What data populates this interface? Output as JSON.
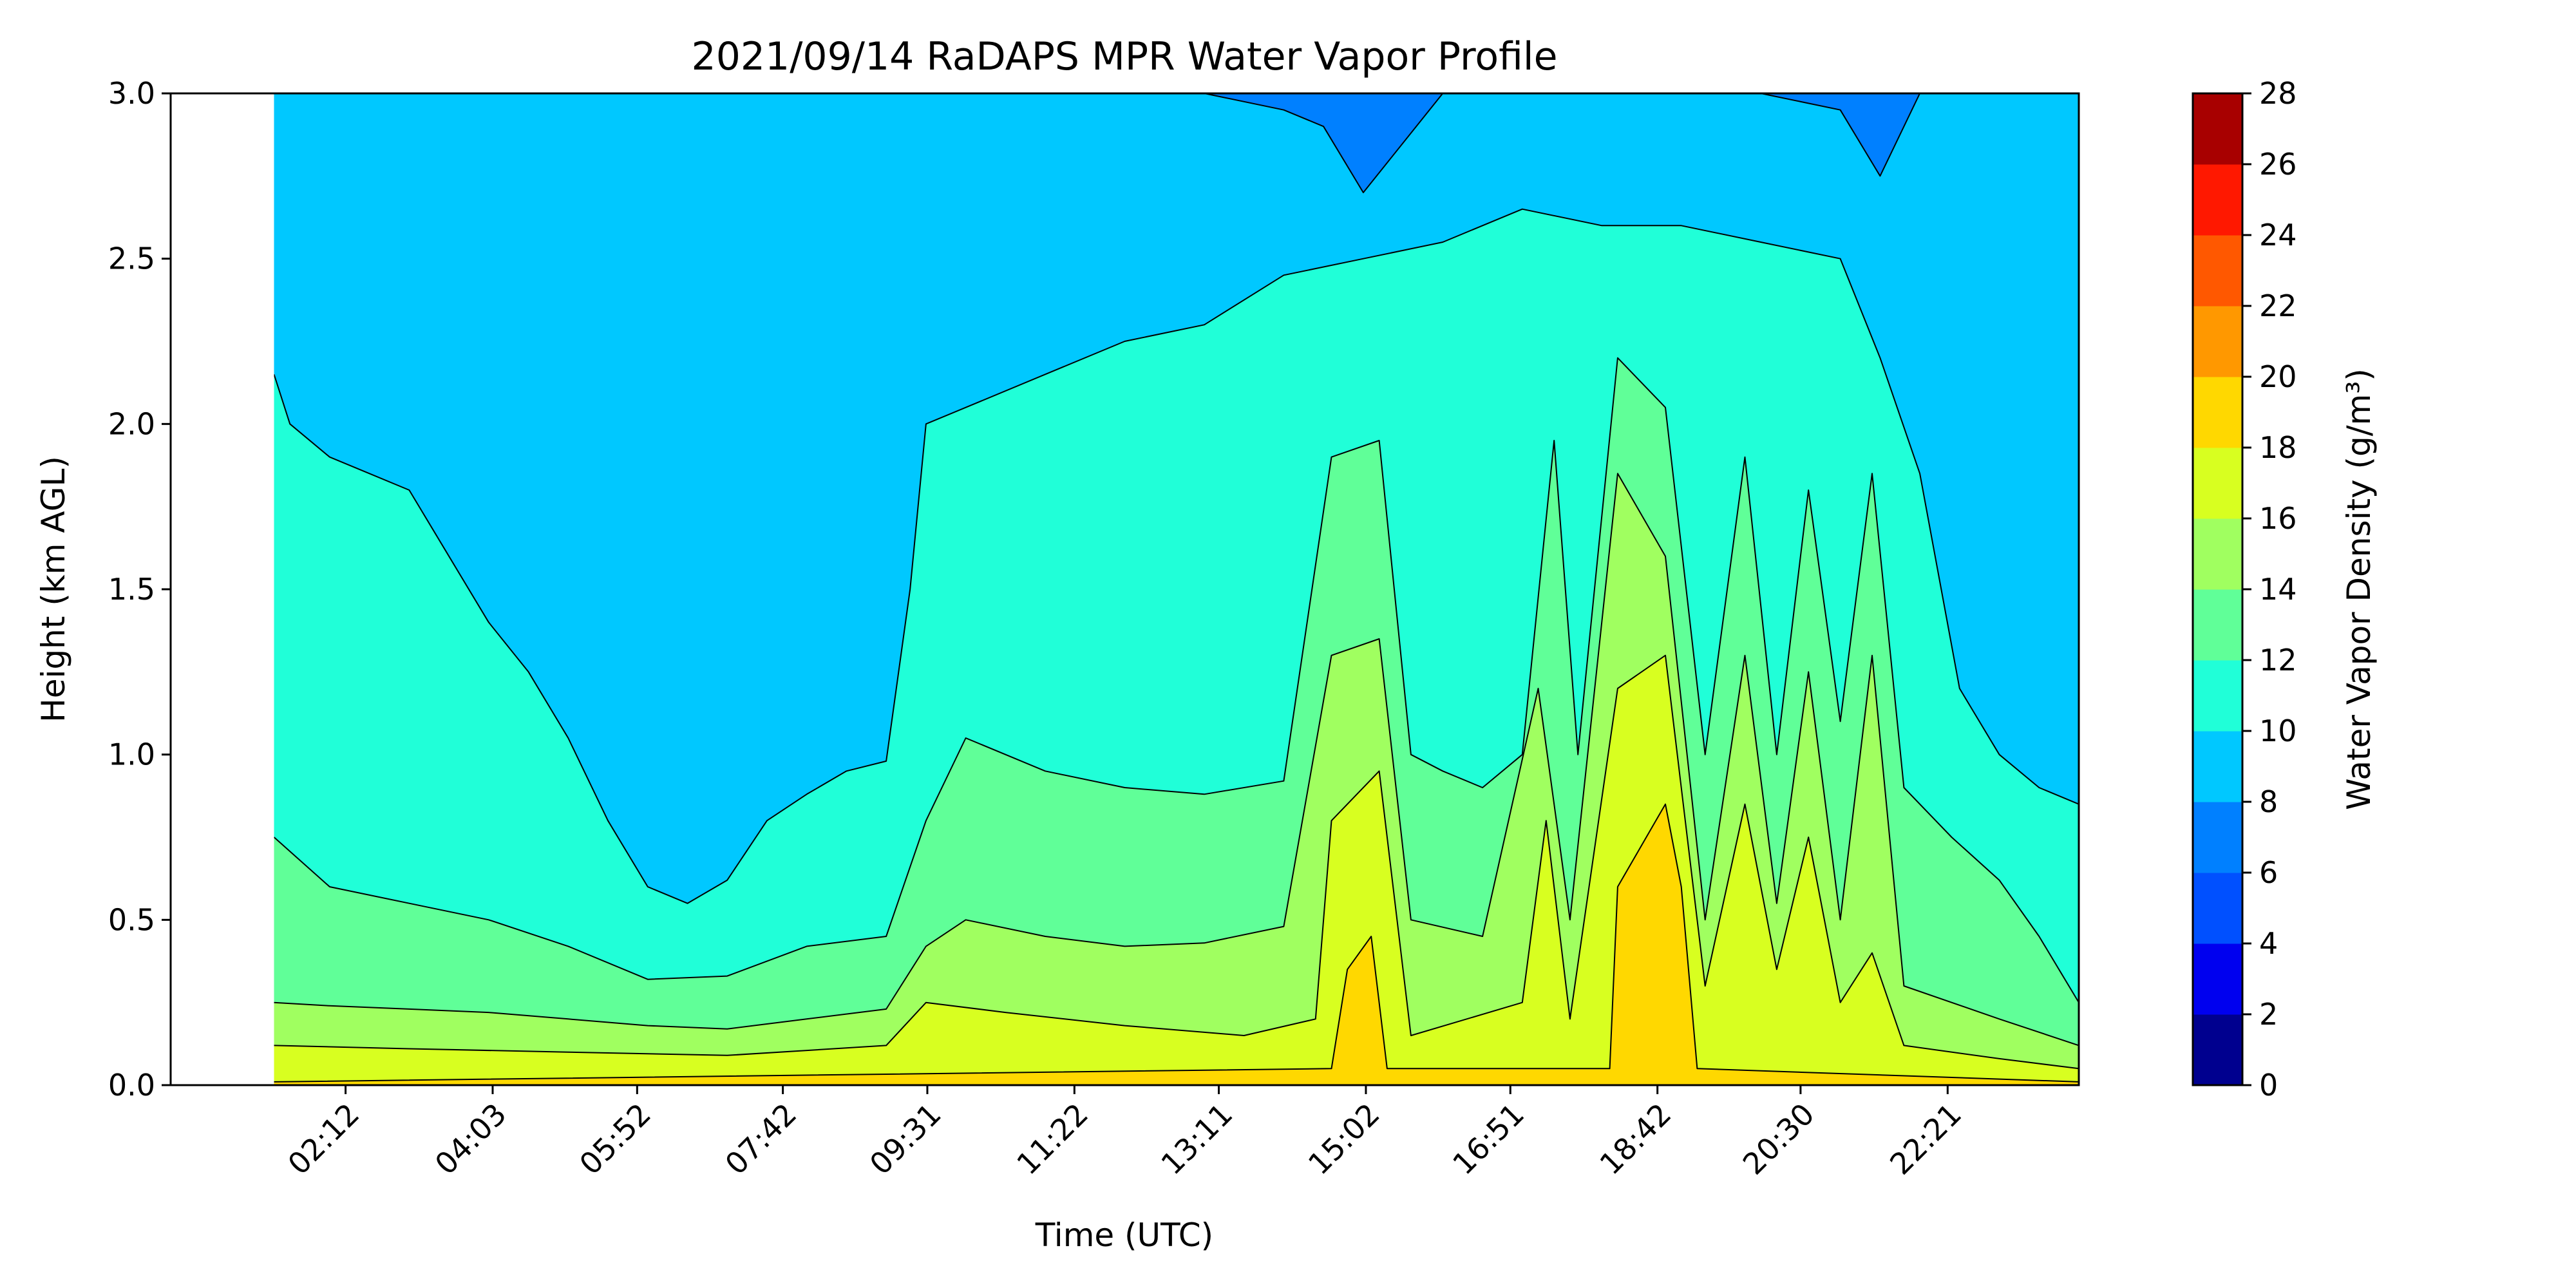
{
  "chart_data": {
    "type": "heatmap",
    "subtype": "filled-contour",
    "title": "2021/09/14 RaDAPS MPR Water Vapor Profile",
    "xlabel": "Time (UTC)",
    "ylabel": "Height (km AGL)",
    "x_range_hours": [
      0.0,
      24.0
    ],
    "x_ticks": [
      {
        "label": "02:12",
        "hour": 2.2
      },
      {
        "label": "04:03",
        "hour": 4.05
      },
      {
        "label": "05:52",
        "hour": 5.867
      },
      {
        "label": "07:42",
        "hour": 7.7
      },
      {
        "label": "09:31",
        "hour": 9.517
      },
      {
        "label": "11:22",
        "hour": 11.367
      },
      {
        "label": "13:11",
        "hour": 13.183
      },
      {
        "label": "15:02",
        "hour": 15.033
      },
      {
        "label": "16:51",
        "hour": 16.85
      },
      {
        "label": "18:42",
        "hour": 18.7
      },
      {
        "label": "20:30",
        "hour": 20.5
      },
      {
        "label": "22:21",
        "hour": 22.35
      }
    ],
    "ylim": [
      0.0,
      3.0
    ],
    "y_ticks": [
      "0.0",
      "0.5",
      "1.0",
      "1.5",
      "2.0",
      "2.5",
      "3.0"
    ],
    "data_gap_hours": [
      0.0,
      1.3
    ],
    "colorbar": {
      "label": "Water Vapor Density (g/m³)",
      "levels": [
        0,
        2,
        4,
        6,
        8,
        10,
        12,
        14,
        16,
        18,
        20,
        22,
        24,
        26,
        28
      ],
      "tick_labels": [
        "0",
        "2",
        "4",
        "6",
        "8",
        "10",
        "12",
        "14",
        "16",
        "18",
        "20",
        "22",
        "24",
        "26",
        "28"
      ],
      "colors": [
        "#00008f",
        "#0000ef",
        "#0050ff",
        "#0080ff",
        "#00c8ff",
        "#20ffd8",
        "#60ff98",
        "#a0ff60",
        "#d8ff20",
        "#ffd800",
        "#ff9800",
        "#ff5800",
        "#ff1800",
        "#a80000"
      ]
    },
    "boundaries": [
      {
        "level": 8,
        "tops": [
          [
            1.3,
            3.0
          ],
          [
            3.0,
            3.0
          ],
          [
            4.5,
            3.0
          ],
          [
            6.0,
            3.0
          ],
          [
            7.5,
            3.0
          ],
          [
            9.0,
            3.0
          ],
          [
            11.0,
            3.0
          ],
          [
            13.0,
            3.0
          ],
          [
            14.0,
            2.95
          ],
          [
            14.5,
            2.9
          ],
          [
            15.0,
            2.7
          ],
          [
            15.5,
            2.85
          ],
          [
            16.0,
            3.0
          ],
          [
            17.0,
            3.0
          ],
          [
            18.0,
            3.0
          ],
          [
            19.0,
            3.0
          ],
          [
            20.0,
            3.0
          ],
          [
            21.0,
            2.95
          ],
          [
            21.5,
            2.75
          ],
          [
            22.0,
            3.0
          ],
          [
            24.0,
            3.0
          ]
        ]
      },
      {
        "level": 10,
        "tops": [
          [
            1.3,
            2.15
          ],
          [
            1.5,
            2.0
          ],
          [
            2.0,
            1.9
          ],
          [
            2.5,
            1.85
          ],
          [
            3.0,
            1.8
          ],
          [
            3.5,
            1.6
          ],
          [
            4.0,
            1.4
          ],
          [
            4.5,
            1.25
          ],
          [
            5.0,
            1.05
          ],
          [
            5.5,
            0.8
          ],
          [
            6.0,
            0.6
          ],
          [
            6.5,
            0.55
          ],
          [
            7.0,
            0.62
          ],
          [
            7.5,
            0.8
          ],
          [
            8.0,
            0.88
          ],
          [
            8.5,
            0.95
          ],
          [
            9.0,
            0.98
          ],
          [
            9.3,
            1.5
          ],
          [
            9.5,
            2.0
          ],
          [
            10.0,
            2.05
          ],
          [
            11.0,
            2.15
          ],
          [
            12.0,
            2.25
          ],
          [
            13.0,
            2.3
          ],
          [
            14.0,
            2.45
          ],
          [
            15.0,
            2.5
          ],
          [
            16.0,
            2.55
          ],
          [
            17.0,
            2.65
          ],
          [
            18.0,
            2.6
          ],
          [
            19.0,
            2.6
          ],
          [
            20.0,
            2.55
          ],
          [
            21.0,
            2.5
          ],
          [
            21.5,
            2.2
          ],
          [
            22.0,
            1.85
          ],
          [
            22.5,
            1.2
          ],
          [
            23.0,
            1.0
          ],
          [
            23.5,
            0.9
          ],
          [
            24.0,
            0.85
          ]
        ]
      },
      {
        "level": 12,
        "tops": [
          [
            1.3,
            0.75
          ],
          [
            2.0,
            0.6
          ],
          [
            3.0,
            0.55
          ],
          [
            4.0,
            0.5
          ],
          [
            5.0,
            0.42
          ],
          [
            6.0,
            0.32
          ],
          [
            7.0,
            0.33
          ],
          [
            8.0,
            0.42
          ],
          [
            9.0,
            0.45
          ],
          [
            9.5,
            0.8
          ],
          [
            10.0,
            1.05
          ],
          [
            11.0,
            0.95
          ],
          [
            12.0,
            0.9
          ],
          [
            13.0,
            0.88
          ],
          [
            14.0,
            0.92
          ],
          [
            14.6,
            1.9
          ],
          [
            15.2,
            1.95
          ],
          [
            15.6,
            1.0
          ],
          [
            16.0,
            0.95
          ],
          [
            16.5,
            0.9
          ],
          [
            17.0,
            1.0
          ],
          [
            17.4,
            1.95
          ],
          [
            17.7,
            1.0
          ],
          [
            18.2,
            2.2
          ],
          [
            18.8,
            2.05
          ],
          [
            19.3,
            1.0
          ],
          [
            19.8,
            1.9
          ],
          [
            20.2,
            1.0
          ],
          [
            20.6,
            1.8
          ],
          [
            21.0,
            1.1
          ],
          [
            21.4,
            1.85
          ],
          [
            21.8,
            0.9
          ],
          [
            22.4,
            0.75
          ],
          [
            23.0,
            0.62
          ],
          [
            23.5,
            0.45
          ],
          [
            24.0,
            0.25
          ]
        ]
      },
      {
        "level": 14,
        "tops": [
          [
            1.3,
            0.25
          ],
          [
            2.0,
            0.24
          ],
          [
            3.0,
            0.23
          ],
          [
            4.0,
            0.22
          ],
          [
            5.0,
            0.2
          ],
          [
            6.0,
            0.18
          ],
          [
            7.0,
            0.17
          ],
          [
            8.0,
            0.2
          ],
          [
            9.0,
            0.23
          ],
          [
            9.5,
            0.42
          ],
          [
            10.0,
            0.5
          ],
          [
            11.0,
            0.45
          ],
          [
            12.0,
            0.42
          ],
          [
            13.0,
            0.43
          ],
          [
            14.0,
            0.48
          ],
          [
            14.6,
            1.3
          ],
          [
            15.2,
            1.35
          ],
          [
            15.6,
            0.5
          ],
          [
            16.5,
            0.45
          ],
          [
            17.2,
            1.2
          ],
          [
            17.6,
            0.5
          ],
          [
            18.2,
            1.85
          ],
          [
            18.8,
            1.6
          ],
          [
            19.3,
            0.5
          ],
          [
            19.8,
            1.3
          ],
          [
            20.2,
            0.55
          ],
          [
            20.6,
            1.25
          ],
          [
            21.0,
            0.5
          ],
          [
            21.4,
            1.3
          ],
          [
            21.8,
            0.3
          ],
          [
            23.0,
            0.2
          ],
          [
            24.0,
            0.12
          ]
        ]
      },
      {
        "level": 16,
        "tops": [
          [
            1.3,
            0.12
          ],
          [
            3.0,
            0.11
          ],
          [
            5.0,
            0.1
          ],
          [
            7.0,
            0.09
          ],
          [
            9.0,
            0.12
          ],
          [
            9.5,
            0.25
          ],
          [
            10.5,
            0.22
          ],
          [
            12.0,
            0.18
          ],
          [
            13.5,
            0.15
          ],
          [
            14.4,
            0.2
          ],
          [
            14.6,
            0.8
          ],
          [
            15.2,
            0.95
          ],
          [
            15.6,
            0.15
          ],
          [
            17.0,
            0.25
          ],
          [
            17.3,
            0.8
          ],
          [
            17.6,
            0.2
          ],
          [
            18.2,
            1.2
          ],
          [
            18.8,
            1.3
          ],
          [
            19.3,
            0.3
          ],
          [
            19.8,
            0.85
          ],
          [
            20.2,
            0.35
          ],
          [
            20.6,
            0.75
          ],
          [
            21.0,
            0.25
          ],
          [
            21.4,
            0.4
          ],
          [
            21.8,
            0.12
          ],
          [
            23.0,
            0.08
          ],
          [
            24.0,
            0.05
          ]
        ]
      },
      {
        "level": 18,
        "tops": [
          [
            1.3,
            0.01
          ],
          [
            14.6,
            0.05
          ],
          [
            14.8,
            0.35
          ],
          [
            15.1,
            0.45
          ],
          [
            15.3,
            0.05
          ],
          [
            18.1,
            0.05
          ],
          [
            18.2,
            0.6
          ],
          [
            18.8,
            0.85
          ],
          [
            19.0,
            0.6
          ],
          [
            19.2,
            0.05
          ],
          [
            24.0,
            0.01
          ]
        ]
      }
    ]
  }
}
